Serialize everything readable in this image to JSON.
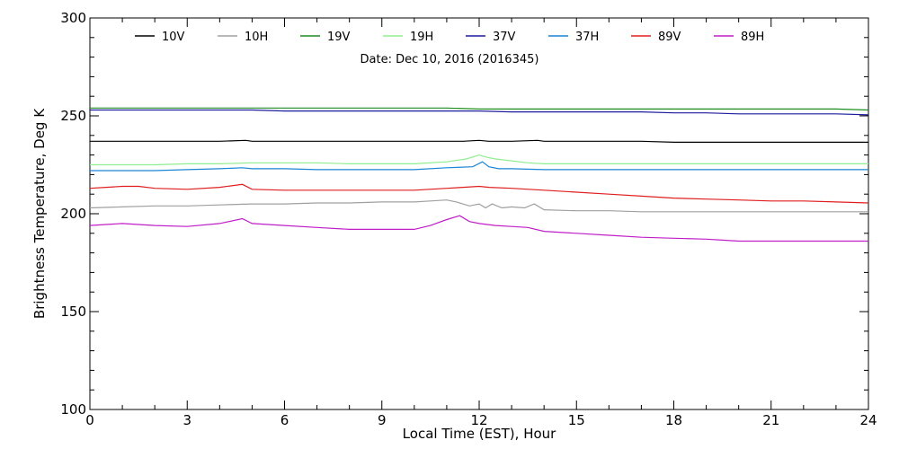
{
  "chart_data": {
    "type": "line",
    "title": "",
    "annotation": "Date: Dec 10, 2016 (2016345)",
    "xlabel": "Local Time (EST), Hour",
    "ylabel": "Brightness Temperature, Deg K",
    "xlim": [
      0,
      24
    ],
    "ylim": [
      100,
      300
    ],
    "x_ticks": [
      0,
      3,
      6,
      9,
      12,
      15,
      18,
      21,
      24
    ],
    "y_ticks": [
      100,
      150,
      200,
      250,
      300
    ],
    "grid": false,
    "legend_position": "top",
    "series": [
      {
        "name": "10V",
        "color": "#000000",
        "x": [
          0,
          1,
          2,
          3,
          4,
          4.8,
          5,
          6,
          7,
          8,
          9,
          10,
          11,
          11.5,
          12,
          12.3,
          13,
          13.8,
          14,
          15,
          16,
          17,
          18,
          19,
          20,
          21,
          22,
          23,
          24
        ],
        "y": [
          237,
          237,
          237,
          237,
          237,
          237.5,
          237,
          237,
          237,
          237,
          237,
          237,
          237,
          237,
          237.5,
          237,
          237,
          237.5,
          237,
          237,
          237,
          237,
          236.5,
          236.5,
          236.5,
          236.5,
          236.5,
          236.5,
          236.5
        ]
      },
      {
        "name": "10H",
        "color": "#a0a0a0",
        "x": [
          0,
          1,
          2,
          3,
          4,
          5,
          6,
          7,
          8,
          9,
          10,
          10.5,
          11,
          11.3,
          11.7,
          12,
          12.2,
          12.4,
          12.7,
          13,
          13.4,
          13.7,
          14,
          15,
          16,
          17,
          18,
          19,
          20,
          21,
          22,
          23,
          24
        ],
        "y": [
          203,
          203.5,
          204,
          204,
          204.5,
          205,
          205,
          205.5,
          205.5,
          206,
          206,
          206.5,
          207,
          206,
          204,
          205,
          203,
          205,
          203,
          203.5,
          203,
          205,
          202,
          201.5,
          201.5,
          201,
          201,
          201,
          201,
          201,
          201,
          201,
          201
        ]
      },
      {
        "name": "19V",
        "color": "#1e8c1e",
        "x": [
          0,
          1,
          2,
          3,
          4,
          5,
          6,
          7,
          8,
          9,
          10,
          11,
          12,
          13,
          14,
          15,
          16,
          17,
          18,
          19,
          20,
          21,
          22,
          23,
          24
        ],
        "y": [
          254,
          254,
          254,
          254,
          254,
          254,
          254,
          254,
          254,
          254,
          254,
          254,
          253.5,
          253.5,
          253.5,
          253.5,
          253.5,
          253.5,
          253.5,
          253.5,
          253.5,
          253.5,
          253.5,
          253.5,
          253
        ]
      },
      {
        "name": "19H",
        "color": "#90ee90",
        "x": [
          0,
          1,
          2,
          3,
          4,
          5,
          6,
          7,
          8,
          9,
          10,
          11,
          11.6,
          12,
          12.2,
          12.5,
          13,
          13.5,
          14,
          15,
          16,
          17,
          18,
          19,
          20,
          21,
          22,
          23,
          24
        ],
        "y": [
          225,
          225,
          225,
          225.5,
          225.5,
          226,
          226,
          226,
          225.5,
          225.5,
          225.5,
          226.5,
          228,
          230,
          229,
          228,
          227,
          226,
          225.5,
          225.5,
          225.5,
          225.5,
          225.5,
          225.5,
          225.5,
          225.5,
          225.5,
          225.5,
          225.5
        ]
      },
      {
        "name": "37V",
        "color": "#1c1c9e",
        "x": [
          0,
          1,
          2,
          3,
          4,
          5,
          6,
          7,
          8,
          9,
          10,
          11,
          12,
          13,
          14,
          15,
          16,
          17,
          18,
          19,
          20,
          21,
          22,
          23,
          24
        ],
        "y": [
          253,
          253,
          253,
          253,
          253,
          253,
          252.5,
          252.5,
          252.5,
          252.5,
          252.5,
          252.5,
          252.5,
          252,
          252,
          252,
          252,
          252,
          251.5,
          251.5,
          251,
          251,
          251,
          251,
          250.5
        ]
      },
      {
        "name": "37H",
        "color": "#1a84d6",
        "x": [
          0,
          1,
          2,
          3,
          4,
          4.7,
          5,
          6,
          7,
          8,
          9,
          10,
          11,
          11.8,
          12.1,
          12.3,
          12.6,
          13,
          14,
          15,
          16,
          17,
          18,
          19,
          20,
          21,
          22,
          23,
          24
        ],
        "y": [
          222,
          222,
          222,
          222.5,
          223,
          223.5,
          223,
          223,
          222.5,
          222.5,
          222.5,
          222.5,
          223.5,
          224,
          226.5,
          224,
          223,
          223,
          222.5,
          222.5,
          222.5,
          222.5,
          222.5,
          222.5,
          222.5,
          222.5,
          222.5,
          222.5,
          222.5
        ]
      },
      {
        "name": "89V",
        "color": "#e01e1e",
        "x": [
          0,
          0.5,
          1,
          1.5,
          2,
          3,
          4,
          4.7,
          5,
          6,
          7,
          8,
          9,
          10,
          11,
          11.5,
          12,
          12.3,
          13,
          14,
          15,
          16,
          17,
          18,
          19,
          20,
          21,
          22,
          23,
          24
        ],
        "y": [
          213,
          213.5,
          214,
          214,
          213,
          212.5,
          213.5,
          215,
          212.5,
          212,
          212,
          212,
          212,
          212,
          213,
          213.5,
          214,
          213.5,
          213,
          212,
          211,
          210,
          209,
          208,
          207.5,
          207,
          206.5,
          206.5,
          206,
          205.5
        ]
      },
      {
        "name": "89H",
        "color": "#c01ec8",
        "x": [
          0,
          1,
          2,
          3,
          4,
          4.7,
          5,
          6,
          7,
          8,
          9,
          10,
          10.5,
          11,
          11.4,
          11.7,
          12,
          12.5,
          13,
          13.5,
          14,
          15,
          16,
          17,
          18,
          19,
          19.5,
          20,
          21,
          22,
          23,
          24
        ],
        "y": [
          194,
          195,
          194,
          193.5,
          195,
          197.5,
          195,
          194,
          193,
          192,
          192,
          192,
          194,
          197,
          199,
          196,
          195,
          194,
          193.5,
          193,
          191,
          190,
          189,
          188,
          187.5,
          187,
          186.5,
          186,
          186,
          186,
          186,
          186
        ]
      }
    ]
  }
}
